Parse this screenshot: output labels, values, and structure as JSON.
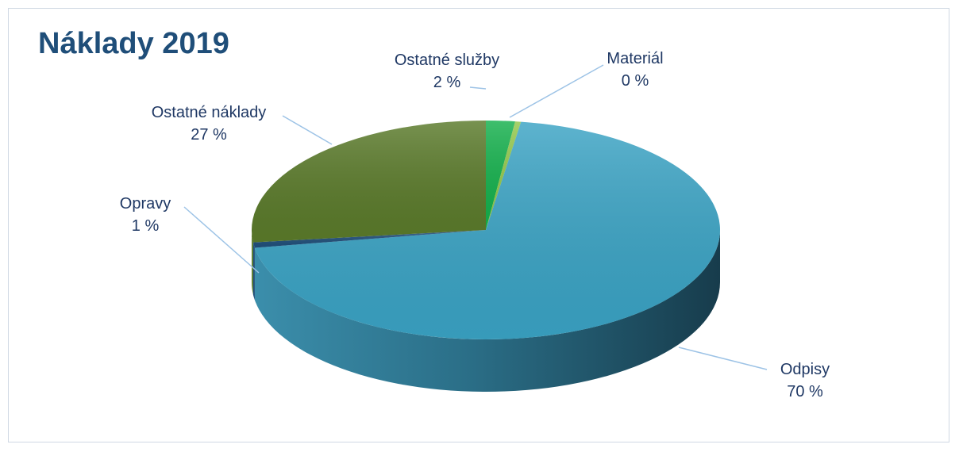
{
  "title": "Náklady 2019",
  "chart_data": {
    "type": "pie",
    "title": "Náklady 2019",
    "slices": [
      {
        "name": "Ostatné služby",
        "value": 2,
        "label": "2 %",
        "color": "#14b04c"
      },
      {
        "name": "Materiál",
        "value": 0.4,
        "label": "0 %",
        "color": "#92c74a"
      },
      {
        "name": "Odpisy",
        "value": 70,
        "label": "70 %",
        "color": "#3aa3c4"
      },
      {
        "name": "Opravy",
        "value": 0.8,
        "label": "1 %",
        "color": "#1f4e79"
      },
      {
        "name": "Ostatné náklady",
        "value": 26.8,
        "label": "27 %",
        "color": "#5a7a2a"
      }
    ],
    "legend": "none",
    "three_d": true
  }
}
